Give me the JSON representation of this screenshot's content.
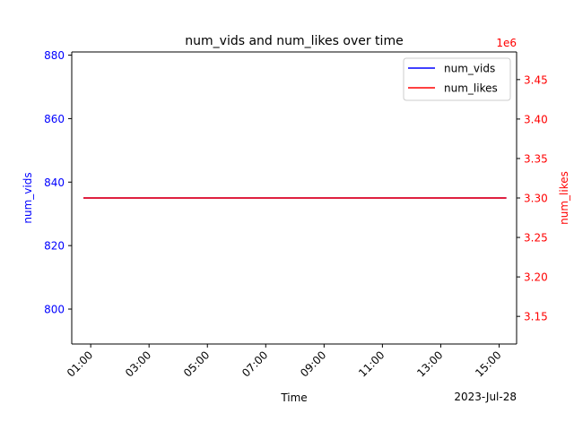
{
  "chart_data": {
    "type": "line",
    "title": "num_vids and num_likes over time",
    "xlabel": "Time",
    "x_offset_label": "2023-Jul-28",
    "x_tick_labels": [
      "01:00",
      "03:00",
      "05:00",
      "07:00",
      "09:00",
      "11:00",
      "13:00",
      "15:00"
    ],
    "x_ticks_hours": [
      1,
      3,
      5,
      7,
      9,
      11,
      13,
      15
    ],
    "xlim_hours": [
      0.35,
      15.6
    ],
    "left_axis": {
      "label": "num_vids",
      "color": "#0000ff",
      "ylim": [
        789,
        881
      ],
      "ticks": [
        800,
        820,
        840,
        860,
        880
      ],
      "tick_labels": [
        "800",
        "820",
        "840",
        "860",
        "880"
      ]
    },
    "right_axis": {
      "label": "num_likes",
      "color": "#ff0000",
      "ylim": [
        3115000,
        3485000
      ],
      "ticks": [
        3150000,
        3200000,
        3250000,
        3300000,
        3350000,
        3400000,
        3450000
      ],
      "tick_labels": [
        "3.15",
        "3.20",
        "3.25",
        "3.30",
        "3.35",
        "3.40",
        "3.45"
      ],
      "scale_label": "1e6"
    },
    "series": [
      {
        "name": "num_vids",
        "axis": "left",
        "color": "#0000ff",
        "x_hours": [
          0.75,
          15.25
        ],
        "values": [
          835,
          835
        ]
      },
      {
        "name": "num_likes",
        "axis": "right",
        "color": "#ff0000",
        "x_hours": [
          0.75,
          15.25
        ],
        "values": [
          3300000,
          3300000
        ]
      }
    ],
    "legend": {
      "position": "top-right"
    }
  }
}
